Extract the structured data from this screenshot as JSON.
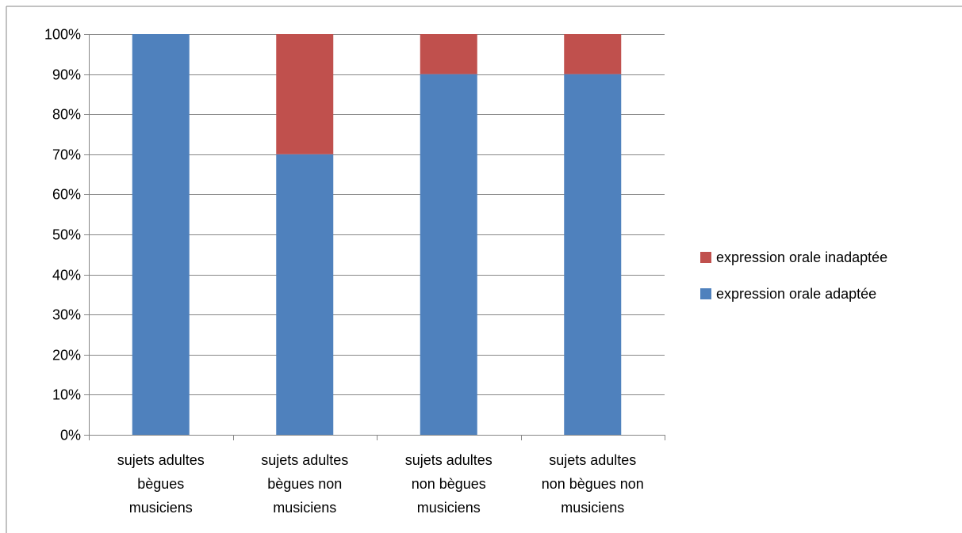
{
  "chart_data": {
    "type": "bar",
    "stacked": true,
    "categories": [
      [
        "sujets adultes",
        "bègues",
        "musiciens"
      ],
      [
        "sujets adultes",
        "bègues non",
        "musiciens"
      ],
      [
        "sujets adultes",
        "non bègues",
        "musiciens"
      ],
      [
        "sujets adultes",
        "non bègues non",
        "musiciens"
      ]
    ],
    "series": [
      {
        "name": "expression orale adaptée",
        "values": [
          100,
          70,
          90,
          90
        ],
        "color": "#4F81BD"
      },
      {
        "name": "expression orale inadaptée",
        "values": [
          0,
          30,
          10,
          10
        ],
        "color": "#C0504D"
      }
    ],
    "yticks": [
      "0%",
      "10%",
      "20%",
      "30%",
      "40%",
      "50%",
      "60%",
      "70%",
      "80%",
      "90%",
      "100%"
    ],
    "ylim": [
      0,
      100
    ],
    "grid": true,
    "legend_position": "right",
    "legend_order": [
      "expression orale inadaptée",
      "expression orale adaptée"
    ],
    "gridline_color": "#868686",
    "axis_color": "#868686",
    "border_color": "#868686"
  }
}
